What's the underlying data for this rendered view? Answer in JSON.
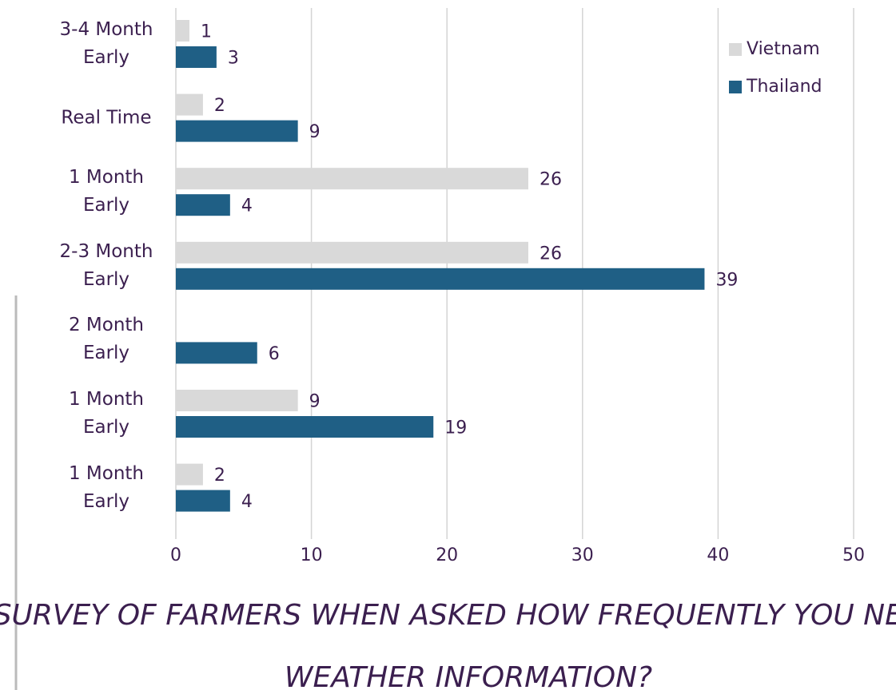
{
  "chart_data": {
    "type": "hbar",
    "title": "SURVEY OF FARMERS WHEN ASKED HOW FREQUENTLY YOU NEED WEATHER INFORMATION?",
    "categories": [
      "3-4 Month Early",
      "Real Time",
      "1 Month Early",
      "2-3 Month Early",
      "2 Month Early",
      "1 Month Early",
      "1 Month Early"
    ],
    "series": [
      {
        "name": "Vietnam",
        "color": "#d9d9d9",
        "values": [
          1,
          2,
          26,
          26,
          null,
          9,
          2
        ]
      },
      {
        "name": "Thailand",
        "color": "#1f5f85",
        "values": [
          3,
          9,
          4,
          39,
          6,
          19,
          4
        ]
      }
    ],
    "xlim": [
      0,
      50
    ],
    "xticks": [
      0,
      10,
      20,
      30,
      40,
      50
    ],
    "grid": true,
    "legend": "top-right"
  }
}
